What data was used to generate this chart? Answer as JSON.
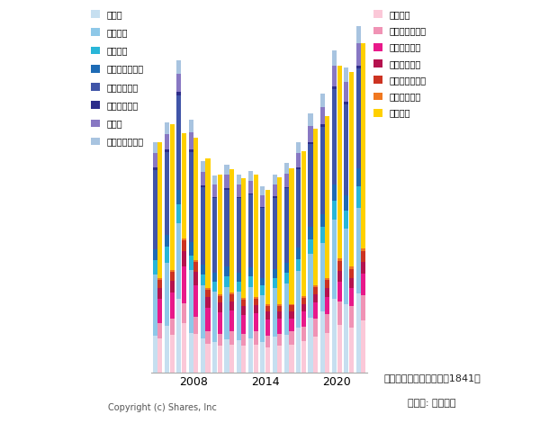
{
  "years": [
    2005,
    2006,
    2007,
    2008,
    2009,
    2010,
    2011,
    2012,
    2013,
    2014,
    2015,
    2016,
    2017,
    2018,
    2019,
    2020,
    2021,
    2022
  ],
  "asset_series": {
    "現金等": [
      300,
      380,
      600,
      320,
      280,
      250,
      270,
      260,
      280,
      250,
      290,
      310,
      370,
      450,
      500,
      600,
      560,
      650
    ],
    "売上債権": [
      500,
      520,
      620,
      520,
      430,
      410,
      430,
      400,
      420,
      380,
      400,
      420,
      460,
      520,
      560,
      650,
      620,
      700
    ],
    "棚卸資産": [
      120,
      130,
      160,
      120,
      90,
      85,
      90,
      85,
      85,
      80,
      85,
      90,
      100,
      120,
      130,
      160,
      150,
      175
    ],
    "その他流動資産": [
      90,
      95,
      115,
      105,
      80,
      72,
      78,
      72,
      78,
      66,
      72,
      78,
      90,
      100,
      108,
      130,
      120,
      145
    ],
    "有形固定資産": [
      650,
      680,
      780,
      740,
      640,
      610,
      630,
      610,
      595,
      570,
      585,
      610,
      645,
      680,
      715,
      785,
      750,
      820
    ],
    "無形固定資産": [
      18,
      21,
      24,
      21,
      15,
      12,
      13,
      12,
      12,
      11,
      12,
      13,
      15,
      18,
      19,
      24,
      23,
      27
    ],
    "投資等": [
      120,
      130,
      150,
      140,
      110,
      100,
      110,
      105,
      100,
      95,
      100,
      110,
      120,
      135,
      145,
      170,
      160,
      185
    ],
    "その他固定資産": [
      90,
      96,
      113,
      107,
      85,
      79,
      85,
      79,
      79,
      73,
      79,
      85,
      90,
      102,
      107,
      124,
      118,
      135
    ]
  },
  "liability_series": {
    "仕入債務": [
      280,
      310,
      400,
      315,
      230,
      215,
      228,
      215,
      228,
      203,
      215,
      228,
      256,
      295,
      320,
      385,
      363,
      425
    ],
    "その他流動負債": [
      120,
      132,
      165,
      143,
      108,
      102,
      108,
      102,
      108,
      95,
      102,
      108,
      120,
      143,
      156,
      193,
      180,
      210
    ],
    "短期借入金等": [
      200,
      215,
      300,
      255,
      190,
      174,
      168,
      154,
      148,
      134,
      120,
      107,
      120,
      134,
      140,
      168,
      148,
      174
    ],
    "長期借入金等": [
      90,
      95,
      128,
      113,
      91,
      82,
      77,
      73,
      68,
      64,
      59,
      55,
      59,
      68,
      73,
      86,
      82,
      95
    ],
    "その他固定負債": [
      65,
      70,
      87,
      78,
      60,
      54,
      57,
      54,
      51,
      49,
      49,
      51,
      54,
      62,
      68,
      81,
      76,
      87
    ],
    "少数株主持分": [
      15,
      16,
      20,
      18,
      14,
      12,
      13,
      12,
      12,
      11,
      11,
      12,
      13,
      15,
      17,
      20,
      19,
      22
    ],
    "株主資本": [
      1118,
      1197,
      862,
      1005,
      1062,
      982,
      1014,
      983,
      1007,
      937,
      1042,
      1109,
      1195,
      1278,
      1326,
      1581,
      1597,
      1688
    ]
  },
  "asset_colors": {
    "現金等": "#c6dff0",
    "売上債権": "#8ec8e8",
    "棚卸資産": "#29b6d8",
    "その他流動資産": "#1e6bb5",
    "有形固定資産": "#4055a8",
    "無形固定資産": "#2d2d8a",
    "投資等": "#8878c3",
    "その他固定資産": "#a8c4e0"
  },
  "liability_colors": {
    "仕入債務": "#fbc8d8",
    "その他流動負債": "#f093b5",
    "短期借入金等": "#e8198a",
    "長期借入金等": "#b5124e",
    "その他固定負債": "#cc3322",
    "少数株主持分": "#f07820",
    "株主資本": "#ffd000"
  },
  "asset_legend_order": [
    "現金等",
    "売上債権",
    "棚卸資産",
    "その他流動資産",
    "有形固定資産",
    "無形固定資産",
    "投資等",
    "その他固定資産"
  ],
  "liability_legend_order": [
    "仕入債務",
    "その他流動負債",
    "短期借入金等",
    "長期借入金等",
    "その他固定負債",
    "少数株主持分",
    "株主資本"
  ],
  "xlabel_years": [
    2008,
    2014,
    2020
  ],
  "footer_left": "Copyright (c) Shares, Inc",
  "footer_right_line1": "サンユー建設株式会社（1841）",
  "footer_right_line2": "（単位: 百万円）"
}
